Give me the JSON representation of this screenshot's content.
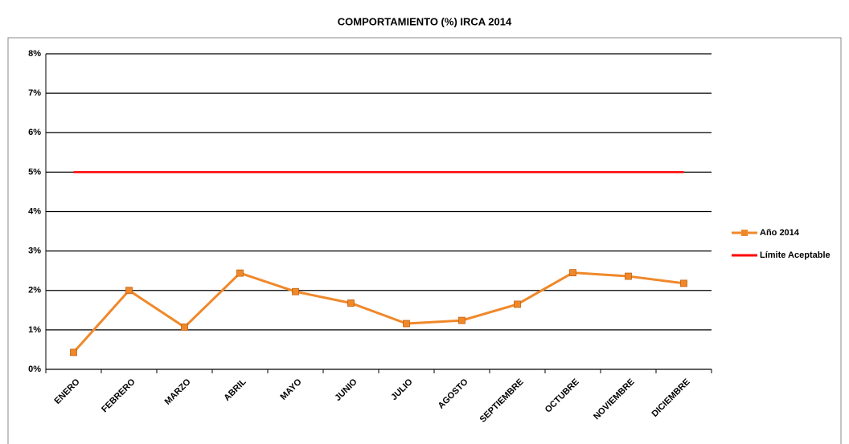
{
  "chart_data": {
    "type": "line",
    "title": "COMPORTAMIENTO (%) IRCA 2014",
    "categories": [
      "ENERO",
      "FEBRERO",
      "MARZO",
      "ABRIL",
      "MAYO",
      "JUNIO",
      "JULIO",
      "AGOSTO",
      "SEPTIEMBRE",
      "OCTUBRE",
      "NOVIEMBRE",
      "DICIEMBRE"
    ],
    "series": [
      {
        "name": "Año 2014",
        "color": "#f0882a",
        "marker": "square",
        "values": [
          0.43,
          2.0,
          1.07,
          2.44,
          1.97,
          1.68,
          1.16,
          1.24,
          1.65,
          2.45,
          2.36,
          2.18
        ]
      },
      {
        "name": "Límite Aceptable",
        "color": "#ff0000",
        "marker": "none",
        "values": [
          5,
          5,
          5,
          5,
          5,
          5,
          5,
          5,
          5,
          5,
          5,
          5
        ]
      }
    ],
    "ylim": [
      0,
      8
    ],
    "yticks": [
      {
        "value": 0,
        "label": "0%"
      },
      {
        "value": 1,
        "label": "1%"
      },
      {
        "value": 2,
        "label": "2%"
      },
      {
        "value": 3,
        "label": "3%"
      },
      {
        "value": 4,
        "label": "4%"
      },
      {
        "value": 5,
        "label": "5%"
      },
      {
        "value": 6,
        "label": "6%"
      },
      {
        "value": 7,
        "label": "7%"
      },
      {
        "value": 8,
        "label": "8%"
      }
    ],
    "grid": true,
    "legend": "right"
  }
}
